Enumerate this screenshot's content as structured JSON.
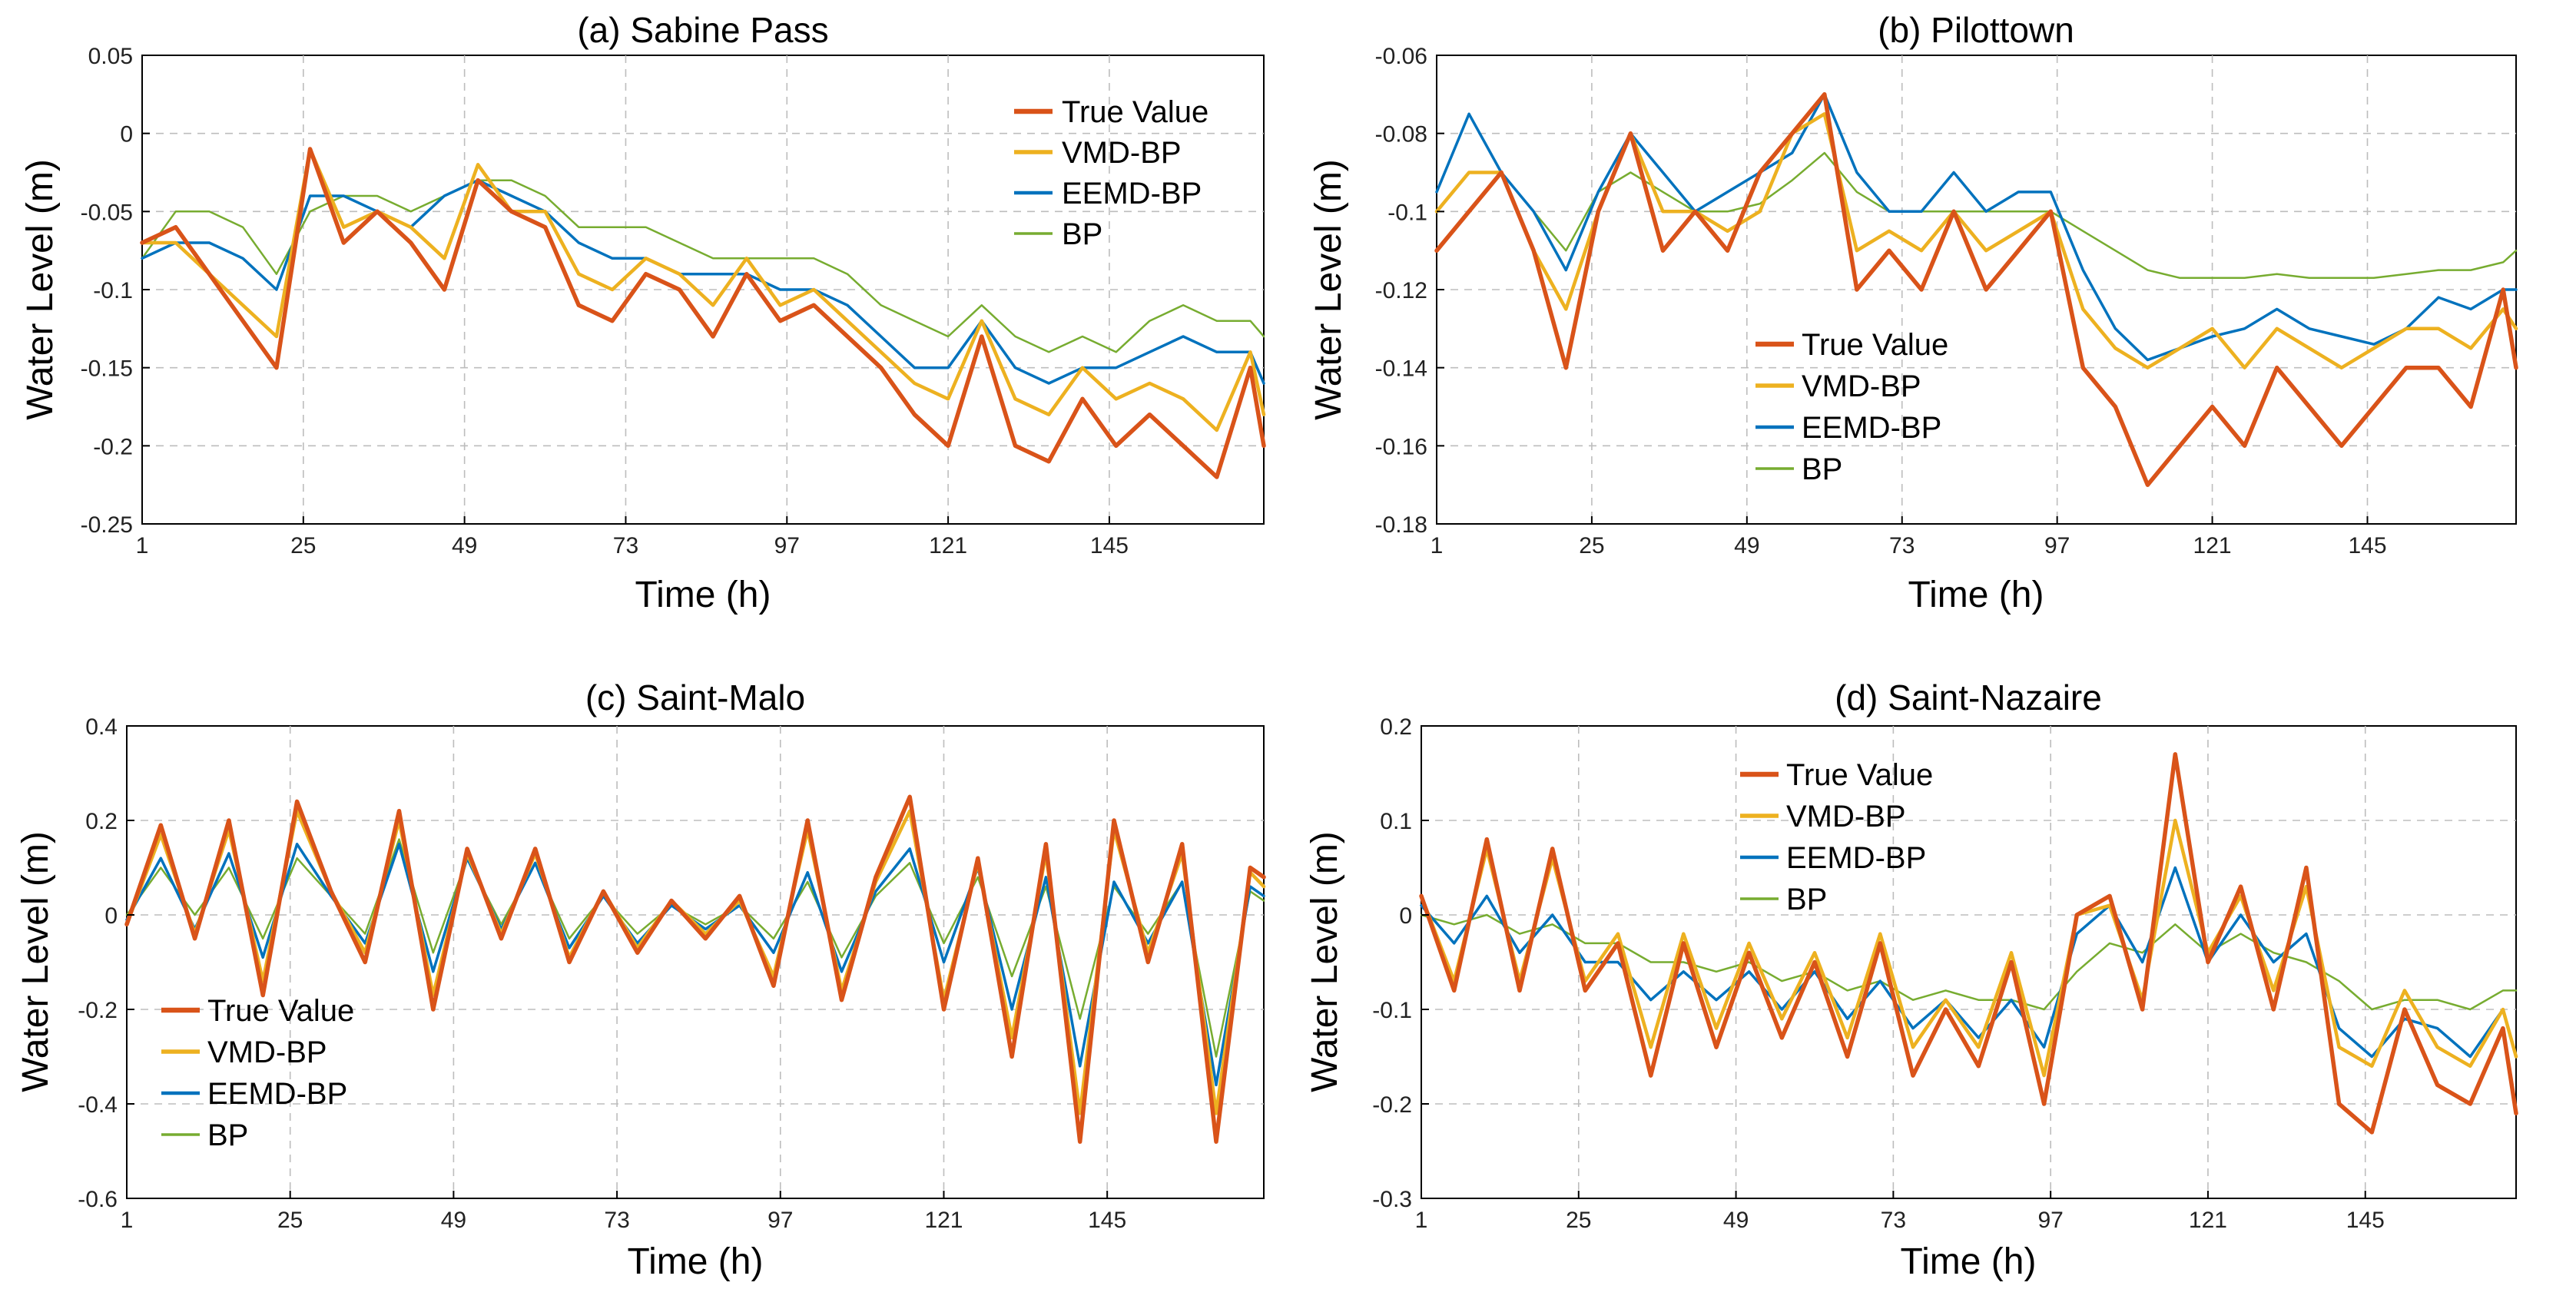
{
  "legend": [
    "True Value",
    "VMD-BP",
    "EEMD-BP",
    "BP"
  ],
  "colors": {
    "True Value": "#d95319",
    "VMD-BP": "#edb120",
    "EEMD-BP": "#0072bd",
    "BP": "#77ac30"
  },
  "chart_data": [
    {
      "type": "line",
      "title": "(a) Sabine Pass",
      "xlabel": "Time (h)",
      "ylabel": "Water Level (m)",
      "xlim": [
        1,
        168
      ],
      "ylim": [
        -0.25,
        0.05
      ],
      "xticks": [
        1,
        25,
        49,
        73,
        97,
        121,
        145
      ],
      "yticks": [
        -0.25,
        -0.2,
        -0.15,
        -0.1,
        -0.05,
        0,
        0.05
      ],
      "ytick_labels": [
        "-0.25",
        "-0.2",
        "-0.15",
        "-0.1",
        "-0.05",
        "0",
        "0.05"
      ],
      "legend_pos": "top-right",
      "grid": true,
      "x": [
        1,
        6,
        11,
        16,
        21,
        26,
        31,
        36,
        41,
        46,
        51,
        56,
        61,
        66,
        71,
        76,
        81,
        86,
        91,
        96,
        101,
        106,
        111,
        116,
        121,
        126,
        131,
        136,
        141,
        146,
        151,
        156,
        161,
        166,
        168
      ],
      "series": [
        {
          "name": "True Value",
          "values": [
            -0.07,
            -0.06,
            -0.09,
            -0.12,
            -0.15,
            -0.01,
            -0.07,
            -0.05,
            -0.07,
            -0.1,
            -0.03,
            -0.05,
            -0.06,
            -0.11,
            -0.12,
            -0.09,
            -0.1,
            -0.13,
            -0.09,
            -0.12,
            -0.11,
            -0.13,
            -0.15,
            -0.18,
            -0.2,
            -0.13,
            -0.2,
            -0.21,
            -0.17,
            -0.2,
            -0.18,
            -0.2,
            -0.22,
            -0.15,
            -0.2
          ]
        },
        {
          "name": "VMD-BP",
          "values": [
            -0.07,
            -0.07,
            -0.09,
            -0.11,
            -0.13,
            -0.01,
            -0.06,
            -0.05,
            -0.06,
            -0.08,
            -0.02,
            -0.05,
            -0.05,
            -0.09,
            -0.1,
            -0.08,
            -0.09,
            -0.11,
            -0.08,
            -0.11,
            -0.1,
            -0.12,
            -0.14,
            -0.16,
            -0.17,
            -0.12,
            -0.17,
            -0.18,
            -0.15,
            -0.17,
            -0.16,
            -0.17,
            -0.19,
            -0.14,
            -0.18
          ]
        },
        {
          "name": "EEMD-BP",
          "values": [
            -0.08,
            -0.07,
            -0.07,
            -0.08,
            -0.1,
            -0.04,
            -0.04,
            -0.05,
            -0.06,
            -0.04,
            -0.03,
            -0.04,
            -0.05,
            -0.07,
            -0.08,
            -0.08,
            -0.09,
            -0.09,
            -0.09,
            -0.1,
            -0.1,
            -0.11,
            -0.13,
            -0.15,
            -0.15,
            -0.12,
            -0.15,
            -0.16,
            -0.15,
            -0.15,
            -0.14,
            -0.13,
            -0.14,
            -0.14,
            -0.16
          ]
        },
        {
          "name": "BP",
          "values": [
            -0.08,
            -0.05,
            -0.05,
            -0.06,
            -0.09,
            -0.05,
            -0.04,
            -0.04,
            -0.05,
            -0.04,
            -0.03,
            -0.03,
            -0.04,
            -0.06,
            -0.06,
            -0.06,
            -0.07,
            -0.08,
            -0.08,
            -0.08,
            -0.08,
            -0.09,
            -0.11,
            -0.12,
            -0.13,
            -0.11,
            -0.13,
            -0.14,
            -0.13,
            -0.14,
            -0.12,
            -0.11,
            -0.12,
            -0.12,
            -0.13
          ]
        }
      ]
    },
    {
      "type": "line",
      "title": "(b) Pilottown",
      "xlabel": "Time (h)",
      "ylabel": "Water Level (m)",
      "xlim": [
        1,
        168
      ],
      "ylim": [
        -0.18,
        -0.06
      ],
      "xticks": [
        1,
        25,
        49,
        73,
        97,
        121,
        145
      ],
      "yticks": [
        -0.18,
        -0.16,
        -0.14,
        -0.12,
        -0.1,
        -0.08,
        -0.06
      ],
      "ytick_labels": [
        "-0.18",
        "-0.16",
        "-0.14",
        "-0.12",
        "-0.1",
        "-0.08",
        "-0.06"
      ],
      "legend_pos": "center",
      "grid": true,
      "x": [
        1,
        6,
        11,
        16,
        21,
        26,
        31,
        36,
        41,
        46,
        51,
        56,
        61,
        66,
        71,
        76,
        81,
        86,
        91,
        96,
        101,
        106,
        111,
        116,
        121,
        126,
        131,
        136,
        141,
        146,
        151,
        156,
        161,
        166,
        168
      ],
      "series": [
        {
          "name": "True Value",
          "values": [
            -0.11,
            -0.1,
            -0.09,
            -0.11,
            -0.14,
            -0.1,
            -0.08,
            -0.11,
            -0.1,
            -0.11,
            -0.09,
            -0.08,
            -0.07,
            -0.12,
            -0.11,
            -0.12,
            -0.1,
            -0.12,
            -0.11,
            -0.1,
            -0.14,
            -0.15,
            -0.17,
            -0.16,
            -0.15,
            -0.16,
            -0.14,
            -0.15,
            -0.16,
            -0.15,
            -0.14,
            -0.14,
            -0.15,
            -0.12,
            -0.14
          ]
        },
        {
          "name": "VMD-BP",
          "values": [
            -0.1,
            -0.09,
            -0.09,
            -0.11,
            -0.125,
            -0.1,
            -0.08,
            -0.1,
            -0.1,
            -0.105,
            -0.1,
            -0.08,
            -0.075,
            -0.11,
            -0.105,
            -0.11,
            -0.1,
            -0.11,
            -0.105,
            -0.1,
            -0.125,
            -0.135,
            -0.14,
            -0.135,
            -0.13,
            -0.14,
            -0.13,
            -0.135,
            -0.14,
            -0.135,
            -0.13,
            -0.13,
            -0.135,
            -0.125,
            -0.13
          ]
        },
        {
          "name": "EEMD-BP",
          "values": [
            -0.095,
            -0.075,
            -0.09,
            -0.1,
            -0.115,
            -0.095,
            -0.08,
            -0.09,
            -0.1,
            -0.095,
            -0.09,
            -0.085,
            -0.07,
            -0.09,
            -0.1,
            -0.1,
            -0.09,
            -0.1,
            -0.095,
            -0.095,
            -0.115,
            -0.13,
            -0.138,
            -0.135,
            -0.132,
            -0.13,
            -0.125,
            -0.13,
            -0.132,
            -0.134,
            -0.13,
            -0.122,
            -0.125,
            -0.12,
            -0.12
          ]
        },
        {
          "name": "BP",
          "values": [
            -0.1,
            -0.09,
            -0.09,
            -0.1,
            -0.11,
            -0.095,
            -0.09,
            -0.095,
            -0.1,
            -0.1,
            -0.098,
            -0.092,
            -0.085,
            -0.095,
            -0.1,
            -0.1,
            -0.1,
            -0.1,
            -0.1,
            -0.1,
            -0.105,
            -0.11,
            -0.115,
            -0.117,
            -0.117,
            -0.117,
            -0.116,
            -0.117,
            -0.117,
            -0.117,
            -0.116,
            -0.115,
            -0.115,
            -0.113,
            -0.11
          ]
        }
      ]
    },
    {
      "type": "line",
      "title": "(c) Saint-Malo",
      "xlabel": "Time (h)",
      "ylabel": "Water Level (m)",
      "xlim": [
        1,
        168
      ],
      "ylim": [
        -0.6,
        0.4
      ],
      "xticks": [
        1,
        25,
        49,
        73,
        97,
        121,
        145
      ],
      "yticks": [
        -0.6,
        -0.4,
        -0.2,
        0,
        0.2,
        0.4
      ],
      "ytick_labels": [
        "-0.6",
        "-0.4",
        "-0.2",
        "0",
        "0.2",
        "0.4"
      ],
      "legend_pos": "bottom-left",
      "grid": true,
      "x": [
        1,
        6,
        11,
        16,
        21,
        26,
        31,
        36,
        41,
        46,
        51,
        56,
        61,
        66,
        71,
        76,
        81,
        86,
        91,
        96,
        101,
        106,
        111,
        116,
        121,
        126,
        131,
        136,
        141,
        146,
        151,
        156,
        161,
        166,
        168
      ],
      "series": [
        {
          "name": "True Value",
          "values": [
            -0.02,
            0.19,
            -0.05,
            0.2,
            -0.17,
            0.24,
            0.05,
            -0.1,
            0.22,
            -0.2,
            0.14,
            -0.05,
            0.14,
            -0.1,
            0.05,
            -0.08,
            0.03,
            -0.05,
            0.04,
            -0.15,
            0.2,
            -0.18,
            0.08,
            0.25,
            -0.2,
            0.12,
            -0.3,
            0.15,
            -0.48,
            0.2,
            -0.1,
            0.15,
            -0.48,
            0.1,
            0.08
          ]
        },
        {
          "name": "VMD-BP",
          "values": [
            -0.02,
            0.17,
            -0.04,
            0.18,
            -0.14,
            0.22,
            0.05,
            -0.08,
            0.2,
            -0.17,
            0.13,
            -0.04,
            0.13,
            -0.09,
            0.05,
            -0.07,
            0.03,
            -0.04,
            0.03,
            -0.13,
            0.18,
            -0.16,
            0.07,
            0.22,
            -0.18,
            0.11,
            -0.26,
            0.13,
            -0.42,
            0.18,
            -0.08,
            0.13,
            -0.42,
            0.09,
            0.06
          ]
        },
        {
          "name": "EEMD-BP",
          "values": [
            -0.01,
            0.12,
            -0.03,
            0.13,
            -0.09,
            0.15,
            0.04,
            -0.06,
            0.15,
            -0.12,
            0.12,
            -0.03,
            0.11,
            -0.07,
            0.04,
            -0.06,
            0.02,
            -0.03,
            0.02,
            -0.08,
            0.09,
            -0.12,
            0.05,
            0.14,
            -0.1,
            0.1,
            -0.2,
            0.08,
            -0.32,
            0.07,
            -0.06,
            0.07,
            -0.36,
            0.06,
            0.04
          ]
        },
        {
          "name": "BP",
          "values": [
            0.0,
            0.1,
            0.0,
            0.1,
            -0.05,
            0.12,
            0.04,
            -0.04,
            0.16,
            -0.08,
            0.12,
            -0.02,
            0.11,
            -0.05,
            0.04,
            -0.04,
            0.02,
            -0.02,
            0.02,
            -0.05,
            0.07,
            -0.09,
            0.04,
            0.11,
            -0.06,
            0.08,
            -0.13,
            0.06,
            -0.22,
            0.06,
            -0.04,
            0.07,
            -0.3,
            0.05,
            0.03
          ]
        }
      ]
    },
    {
      "type": "line",
      "title": "(d) Saint-Nazaire",
      "xlabel": "Time (h)",
      "ylabel": "Water Level (m)",
      "xlim": [
        1,
        168
      ],
      "ylim": [
        -0.3,
        0.2
      ],
      "xticks": [
        1,
        25,
        49,
        73,
        97,
        121,
        145
      ],
      "yticks": [
        -0.3,
        -0.2,
        -0.1,
        0,
        0.1,
        0.2
      ],
      "ytick_labels": [
        "-0.3",
        "-0.2",
        "-0.1",
        "0",
        "0.1",
        "0.2"
      ],
      "legend_pos": "top-center",
      "grid": true,
      "x": [
        1,
        6,
        11,
        16,
        21,
        26,
        31,
        36,
        41,
        46,
        51,
        56,
        61,
        66,
        71,
        76,
        81,
        86,
        91,
        96,
        101,
        106,
        111,
        116,
        121,
        126,
        131,
        136,
        141,
        146,
        151,
        156,
        161,
        166,
        168
      ],
      "series": [
        {
          "name": "True Value",
          "values": [
            0.02,
            -0.08,
            0.08,
            -0.08,
            0.07,
            -0.08,
            -0.03,
            -0.17,
            -0.03,
            -0.14,
            -0.04,
            -0.13,
            -0.05,
            -0.15,
            -0.03,
            -0.17,
            -0.1,
            -0.16,
            -0.05,
            -0.2,
            0.0,
            0.02,
            -0.1,
            0.17,
            -0.05,
            0.03,
            -0.1,
            0.05,
            -0.2,
            -0.23,
            -0.1,
            -0.18,
            -0.2,
            -0.12,
            -0.21
          ]
        },
        {
          "name": "VMD-BP",
          "values": [
            0.02,
            -0.07,
            0.07,
            -0.07,
            0.06,
            -0.07,
            -0.02,
            -0.14,
            -0.02,
            -0.12,
            -0.03,
            -0.11,
            -0.04,
            -0.13,
            -0.02,
            -0.14,
            -0.09,
            -0.14,
            -0.04,
            -0.17,
            0.0,
            0.01,
            -0.09,
            0.1,
            -0.04,
            0.02,
            -0.08,
            0.03,
            -0.14,
            -0.16,
            -0.08,
            -0.14,
            -0.16,
            -0.1,
            -0.15
          ]
        },
        {
          "name": "EEMD-BP",
          "values": [
            0.01,
            -0.03,
            0.02,
            -0.04,
            0.0,
            -0.05,
            -0.05,
            -0.09,
            -0.06,
            -0.09,
            -0.06,
            -0.1,
            -0.06,
            -0.11,
            -0.07,
            -0.12,
            -0.09,
            -0.13,
            -0.09,
            -0.14,
            -0.02,
            0.01,
            -0.05,
            0.05,
            -0.05,
            0.0,
            -0.05,
            -0.02,
            -0.12,
            -0.15,
            -0.11,
            -0.12,
            -0.15,
            -0.1,
            -0.15
          ]
        },
        {
          "name": "BP",
          "values": [
            0.0,
            -0.01,
            0.0,
            -0.02,
            -0.01,
            -0.03,
            -0.03,
            -0.05,
            -0.05,
            -0.06,
            -0.05,
            -0.07,
            -0.06,
            -0.08,
            -0.07,
            -0.09,
            -0.08,
            -0.09,
            -0.09,
            -0.1,
            -0.06,
            -0.03,
            -0.04,
            -0.01,
            -0.04,
            -0.02,
            -0.04,
            -0.05,
            -0.07,
            -0.1,
            -0.09,
            -0.09,
            -0.1,
            -0.08,
            -0.08
          ]
        }
      ]
    }
  ]
}
